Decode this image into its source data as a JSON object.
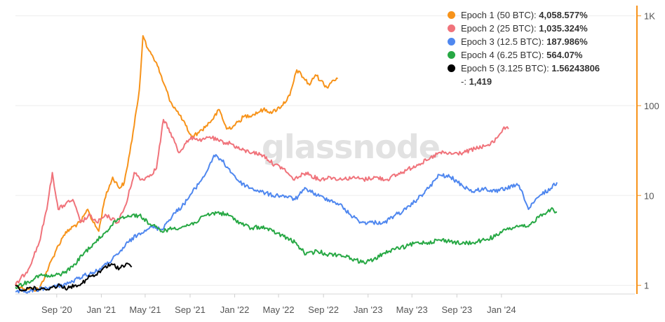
{
  "watermark": "glassnode",
  "legend": [
    {
      "label": "Epoch 1 (50 BTC): ",
      "value": "4,058.577%",
      "color": "#f7931a"
    },
    {
      "label": "Epoch 2 (25 BTC): ",
      "value": "1,035.324%",
      "color": "#f0737b"
    },
    {
      "label": "Epoch 3 (12.5 BTC): ",
      "value": "187.986%",
      "color": "#4f87ef"
    },
    {
      "label": "Epoch 4 (6.25 BTC): ",
      "value": "564.07%",
      "color": "#27a844"
    },
    {
      "label": "Epoch 5 (3.125 BTC): ",
      "value": "1.56243806",
      "color": "#000000"
    },
    {
      "label": "-: ",
      "value": "1,419",
      "color": ""
    }
  ],
  "chart_data": {
    "type": "line",
    "yscale": "log",
    "ylim": [
      0.8,
      1300
    ],
    "xlim": [
      "2020-05-11",
      "2024-12-31"
    ],
    "y_ticks": [
      {
        "v": 1000,
        "label": "1K"
      },
      {
        "v": 100,
        "label": "100"
      },
      {
        "v": 10,
        "label": "10"
      },
      {
        "v": 1,
        "label": "1"
      }
    ],
    "x_ticks": [
      {
        "date": "2020-09-01",
        "label": "Sep '20"
      },
      {
        "date": "2021-01-01",
        "label": "Jan '21"
      },
      {
        "date": "2021-05-01",
        "label": "May '21"
      },
      {
        "date": "2021-09-01",
        "label": "Sep '21"
      },
      {
        "date": "2022-01-01",
        "label": "Jan '22"
      },
      {
        "date": "2022-05-01",
        "label": "May '22"
      },
      {
        "date": "2022-09-01",
        "label": "Sep '22"
      },
      {
        "date": "2023-01-01",
        "label": "Jan '23"
      },
      {
        "date": "2023-05-01",
        "label": "May '23"
      },
      {
        "date": "2023-09-01",
        "label": "Sep '23"
      },
      {
        "date": "2024-01-01",
        "label": "Jan '24"
      }
    ],
    "series": [
      {
        "name": "Epoch 1 (50 BTC)",
        "color": "#f7931a",
        "x": [
          "2020-05-11",
          "2020-06-15",
          "2020-07-15",
          "2020-08-10",
          "2020-08-31",
          "2020-09-20",
          "2020-10-15",
          "2020-11-05",
          "2020-11-25",
          "2020-12-10",
          "2020-12-25",
          "2021-01-10",
          "2021-02-01",
          "2021-02-20",
          "2021-03-05",
          "2021-03-20",
          "2021-04-01",
          "2021-04-15",
          "2021-04-25",
          "2021-05-05",
          "2021-05-15",
          "2021-06-01",
          "2021-06-20",
          "2021-07-10",
          "2021-08-01",
          "2021-08-20",
          "2021-09-05",
          "2021-09-25",
          "2021-10-15",
          "2021-11-01",
          "2021-11-20",
          "2021-12-10",
          "2022-01-01",
          "2022-01-25",
          "2022-02-20",
          "2022-03-20",
          "2022-04-15",
          "2022-05-10",
          "2022-06-01",
          "2022-06-20",
          "2022-07-10",
          "2022-07-25",
          "2022-08-10",
          "2022-08-25",
          "2022-09-10",
          "2022-09-25",
          "2022-10-10"
        ],
        "y": [
          1,
          0.9,
          0.9,
          1.6,
          2.5,
          3.6,
          4.5,
          5,
          7,
          5,
          4,
          9,
          16,
          12,
          14,
          30,
          60,
          150,
          600,
          450,
          400,
          300,
          180,
          110,
          80,
          60,
          45,
          50,
          60,
          70,
          90,
          55,
          60,
          75,
          80,
          90,
          85,
          100,
          130,
          250,
          200,
          170,
          220,
          190,
          160,
          190,
          200
        ]
      },
      {
        "name": "Epoch 2 (25 BTC)",
        "color": "#f0737b",
        "x": [
          "2020-05-11",
          "2020-06-15",
          "2020-07-15",
          "2020-08-05",
          "2020-08-20",
          "2020-09-05",
          "2020-09-25",
          "2020-10-15",
          "2020-11-05",
          "2020-12-01",
          "2020-12-20",
          "2021-01-15",
          "2021-02-15",
          "2021-03-10",
          "2021-04-01",
          "2021-04-20",
          "2021-05-05",
          "2021-05-15",
          "2021-06-01",
          "2021-06-20",
          "2021-07-10",
          "2021-08-01",
          "2021-08-20",
          "2021-09-10",
          "2021-10-01",
          "2021-10-25",
          "2021-11-20",
          "2021-12-20",
          "2022-01-20",
          "2022-02-20",
          "2022-03-20",
          "2022-04-20",
          "2022-05-15",
          "2022-06-10",
          "2022-06-25",
          "2022-07-15",
          "2022-08-20",
          "2022-09-20",
          "2022-10-20",
          "2022-11-20",
          "2022-12-20",
          "2023-01-20",
          "2023-02-20",
          "2023-03-20",
          "2023-04-15",
          "2023-05-15",
          "2023-06-15",
          "2023-07-15",
          "2023-08-20",
          "2023-09-20",
          "2023-10-20",
          "2023-11-20",
          "2023-12-10",
          "2024-01-05",
          "2024-01-20"
        ],
        "y": [
          1,
          1.5,
          3,
          7,
          18,
          7,
          8,
          9,
          5,
          6,
          5,
          6,
          5,
          8,
          18,
          15,
          16,
          17,
          20,
          70,
          50,
          30,
          38,
          45,
          40,
          45,
          40,
          38,
          32,
          30,
          28,
          22,
          20,
          15,
          16,
          18,
          15,
          16,
          15,
          16,
          15,
          16,
          15,
          17,
          19,
          22,
          25,
          30,
          29,
          30,
          33,
          36,
          39,
          55,
          55
        ]
      },
      {
        "name": "Epoch 3 (12.5 BTC)",
        "color": "#4f87ef",
        "x": [
          "2020-05-11",
          "2020-06-15",
          "2020-07-15",
          "2020-08-15",
          "2020-09-15",
          "2020-10-15",
          "2020-11-15",
          "2020-12-15",
          "2021-01-15",
          "2021-02-15",
          "2021-03-15",
          "2021-04-15",
          "2021-05-15",
          "2021-06-15",
          "2021-07-15",
          "2021-08-15",
          "2021-09-15",
          "2021-10-15",
          "2021-11-05",
          "2021-11-25",
          "2021-12-15",
          "2022-01-15",
          "2022-02-15",
          "2022-03-15",
          "2022-04-15",
          "2022-05-15",
          "2022-06-15",
          "2022-07-15",
          "2022-08-15",
          "2022-09-15",
          "2022-10-15",
          "2022-11-15",
          "2022-12-15",
          "2023-01-15",
          "2023-02-15",
          "2023-03-15",
          "2023-04-15",
          "2023-05-15",
          "2023-06-15",
          "2023-07-15",
          "2023-08-15",
          "2023-09-15",
          "2023-10-15",
          "2023-11-15",
          "2023-12-15",
          "2024-01-15",
          "2024-02-15",
          "2024-03-01",
          "2024-03-15",
          "2024-04-15",
          "2024-05-15",
          "2024-06-01"
        ],
        "y": [
          0.85,
          0.85,
          0.9,
          0.95,
          1,
          1.1,
          1.3,
          1.4,
          1.7,
          2.2,
          3,
          3.8,
          4.5,
          4.2,
          6,
          8,
          12,
          18,
          28,
          25,
          20,
          14,
          12,
          11,
          10,
          10,
          9,
          12,
          10,
          9,
          8,
          6,
          5,
          5,
          5,
          6,
          7,
          9,
          12,
          17,
          16,
          13,
          11,
          12,
          11,
          12,
          13,
          10,
          7,
          10,
          12,
          14
        ]
      },
      {
        "name": "Epoch 4 (6.25 BTC)",
        "color": "#27a844",
        "x": [
          "2020-05-11",
          "2020-06-15",
          "2020-07-15",
          "2020-08-15",
          "2020-09-15",
          "2020-10-15",
          "2020-11-15",
          "2020-12-15",
          "2021-01-15",
          "2021-02-15",
          "2021-03-15",
          "2021-04-15",
          "2021-05-15",
          "2021-06-15",
          "2021-07-15",
          "2021-08-15",
          "2021-09-15",
          "2021-10-15",
          "2021-11-15",
          "2021-12-15",
          "2022-01-15",
          "2022-02-15",
          "2022-03-15",
          "2022-04-15",
          "2022-05-15",
          "2022-06-15",
          "2022-07-15",
          "2022-08-15",
          "2022-09-15",
          "2022-10-15",
          "2022-11-15",
          "2022-12-15",
          "2023-01-15",
          "2023-02-15",
          "2023-03-15",
          "2023-04-15",
          "2023-05-15",
          "2023-06-15",
          "2023-07-15",
          "2023-08-15",
          "2023-09-15",
          "2023-10-15",
          "2023-11-15",
          "2023-12-15",
          "2024-01-15",
          "2024-02-15",
          "2024-03-15",
          "2024-04-15",
          "2024-05-15",
          "2024-06-01"
        ],
        "y": [
          0.95,
          1.1,
          1.3,
          1.25,
          1.35,
          1.6,
          2.3,
          3,
          4,
          5.5,
          6,
          6,
          4.8,
          4,
          4.3,
          4.5,
          5,
          6,
          6.5,
          6,
          5,
          4.3,
          4.5,
          4,
          3.5,
          3,
          2.2,
          2.4,
          2.2,
          2.2,
          2,
          1.8,
          1.9,
          2.3,
          2.5,
          2.7,
          3,
          3,
          3.2,
          3.1,
          2.9,
          3,
          3.2,
          3.5,
          4.2,
          4.5,
          4.5,
          6,
          7,
          6.5
        ]
      },
      {
        "name": "Epoch 5 (3.125 BTC)",
        "color": "#000000",
        "x": [
          "2020-05-11",
          "2020-06-01",
          "2020-06-20",
          "2020-07-10",
          "2020-08-01",
          "2020-08-20",
          "2020-09-10",
          "2020-10-01",
          "2020-10-20",
          "2020-11-10",
          "2020-12-01",
          "2020-12-20",
          "2021-01-10",
          "2021-02-01",
          "2021-02-20",
          "2021-03-10",
          "2021-03-25"
        ],
        "y": [
          1,
          0.88,
          0.95,
          0.9,
          0.9,
          0.95,
          1,
          0.92,
          1,
          1.05,
          1.25,
          1.3,
          1.6,
          1.7,
          1.55,
          1.75,
          1.6
        ]
      }
    ]
  }
}
